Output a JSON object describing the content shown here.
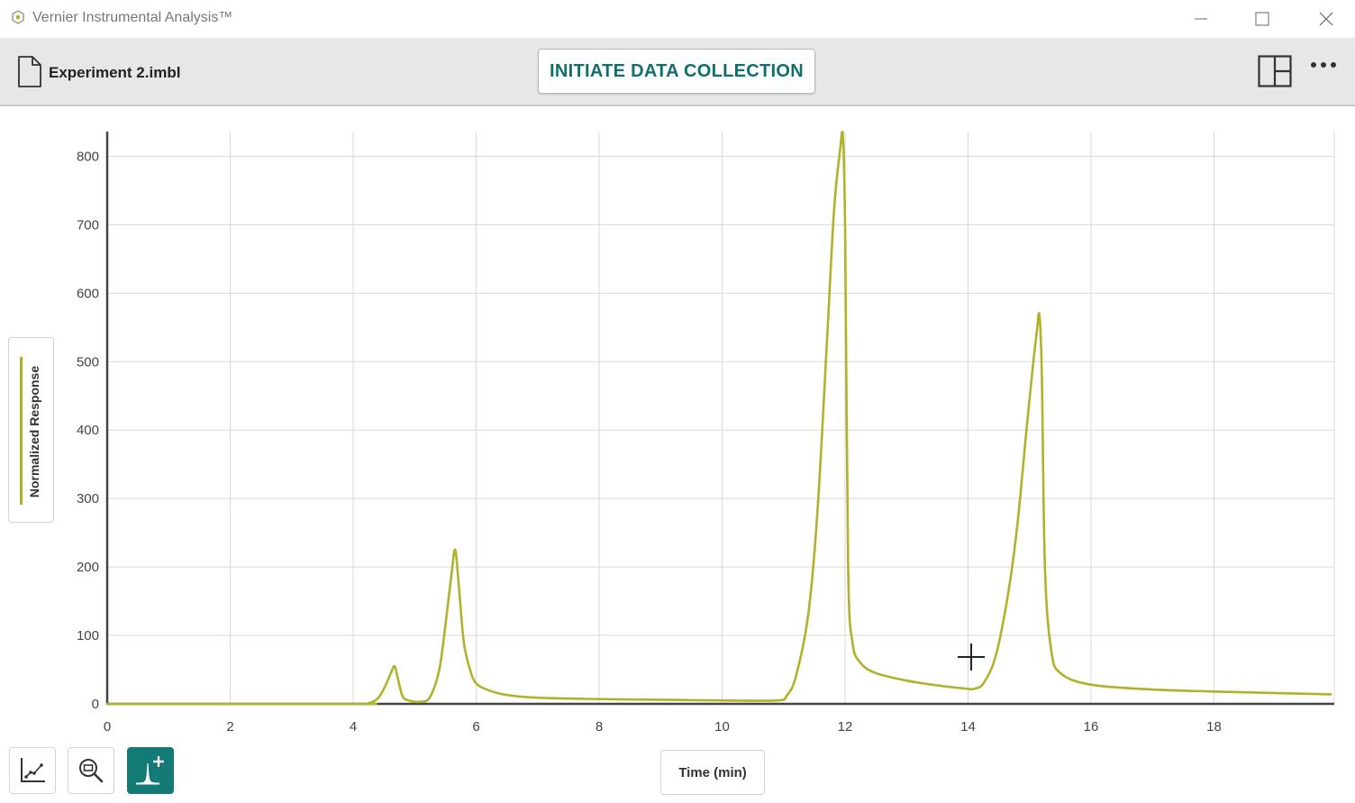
{
  "window": {
    "title": "Vernier Instrumental Analysis™",
    "minimize_icon": "minimize-icon",
    "maximize_icon": "maximize-icon",
    "close_icon": "close-icon"
  },
  "toolbar": {
    "file_name": "Experiment 2.imbl",
    "collect_label": "INITIATE DATA COLLECTION",
    "layout_icon": "layout-icon",
    "more_icon": "more-icon"
  },
  "graph": {
    "y_label": "Normalized Response",
    "x_label": "Time (min)",
    "series_color": "#b0b22a",
    "tools": [
      "graph-tools-icon",
      "zoom-icon",
      "add-peak-icon"
    ]
  },
  "chart_data": {
    "type": "line",
    "xlabel": "Time (min)",
    "ylabel": "Normalized Response",
    "xlim": [
      0,
      19.9
    ],
    "ylim": [
      0,
      835
    ],
    "x_ticks": [
      0,
      2,
      4,
      6,
      8,
      10,
      12,
      14,
      16,
      18
    ],
    "y_ticks": [
      0,
      100,
      200,
      300,
      400,
      500,
      600,
      700,
      800
    ],
    "grid": true,
    "series": [
      {
        "name": "Normalized Response",
        "color": "#b0b22a",
        "points": [
          [
            0,
            0
          ],
          [
            4.0,
            0
          ],
          [
            4.25,
            1
          ],
          [
            4.4,
            8
          ],
          [
            4.5,
            22
          ],
          [
            4.6,
            42
          ],
          [
            4.67,
            55
          ],
          [
            4.72,
            40
          ],
          [
            4.8,
            12
          ],
          [
            4.9,
            5
          ],
          [
            5.1,
            3
          ],
          [
            5.25,
            10
          ],
          [
            5.4,
            50
          ],
          [
            5.5,
            115
          ],
          [
            5.6,
            190
          ],
          [
            5.66,
            225
          ],
          [
            5.72,
            170
          ],
          [
            5.8,
            90
          ],
          [
            5.9,
            50
          ],
          [
            6.0,
            30
          ],
          [
            6.2,
            20
          ],
          [
            6.5,
            13
          ],
          [
            7.0,
            9
          ],
          [
            8.0,
            7
          ],
          [
            9.0,
            6
          ],
          [
            10.0,
            5
          ],
          [
            10.9,
            5
          ],
          [
            11.05,
            12
          ],
          [
            11.2,
            40
          ],
          [
            11.4,
            130
          ],
          [
            11.55,
            280
          ],
          [
            11.7,
            520
          ],
          [
            11.82,
            720
          ],
          [
            11.92,
            810
          ],
          [
            11.96,
            835
          ],
          [
            12.0,
            700
          ],
          [
            12.05,
            200
          ],
          [
            12.12,
            90
          ],
          [
            12.25,
            60
          ],
          [
            12.5,
            45
          ],
          [
            13.0,
            34
          ],
          [
            13.5,
            27
          ],
          [
            14.0,
            22
          ],
          [
            14.1,
            22
          ],
          [
            14.25,
            30
          ],
          [
            14.45,
            70
          ],
          [
            14.65,
            160
          ],
          [
            14.8,
            260
          ],
          [
            14.95,
            400
          ],
          [
            15.05,
            490
          ],
          [
            15.12,
            545
          ],
          [
            15.16,
            568
          ],
          [
            15.2,
            480
          ],
          [
            15.25,
            200
          ],
          [
            15.35,
            80
          ],
          [
            15.5,
            45
          ],
          [
            16.0,
            28
          ],
          [
            17.0,
            21
          ],
          [
            18.0,
            18
          ],
          [
            19.9,
            14
          ]
        ]
      }
    ]
  }
}
